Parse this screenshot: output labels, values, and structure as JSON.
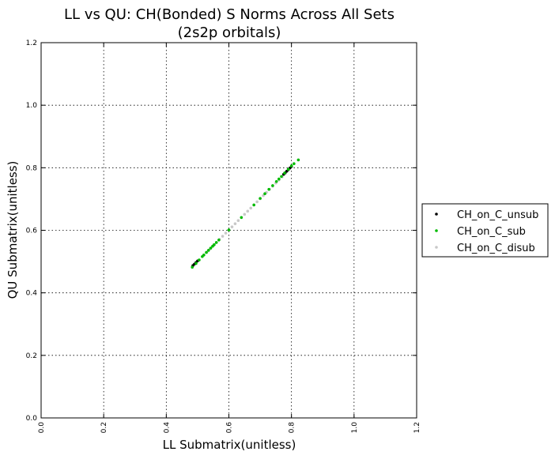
{
  "chart_data": {
    "type": "scatter",
    "title_line1": "LL vs QU: CH(Bonded) S Norms Across All Sets",
    "title_line2": "(2s2p orbitals)",
    "xlabel": "LL Submatrix(unitless)",
    "ylabel": "QU Submatrix(unitless)",
    "xlim": [
      0.0,
      1.2
    ],
    "ylim": [
      0.0,
      1.2
    ],
    "xticks": [
      "0.0",
      "0.2",
      "0.4",
      "0.6",
      "0.8",
      "1.0",
      "1.2"
    ],
    "yticks": [
      "0.0",
      "0.2",
      "0.4",
      "0.6",
      "0.8",
      "1.0",
      "1.2"
    ],
    "grid": true,
    "legend_position": "outside-right",
    "series": [
      {
        "name": "CH_on_C_unsub",
        "color": "#000000",
        "points": [
          [
            0.485,
            0.487
          ],
          [
            0.49,
            0.492
          ],
          [
            0.495,
            0.497
          ],
          [
            0.5,
            0.502
          ],
          [
            0.775,
            0.779
          ],
          [
            0.78,
            0.784
          ],
          [
            0.785,
            0.789
          ],
          [
            0.79,
            0.794
          ],
          [
            0.795,
            0.799
          ],
          [
            0.8,
            0.804
          ]
        ]
      },
      {
        "name": "CH_on_C_sub",
        "color": "#00bb00",
        "points": [
          [
            0.483,
            0.482
          ],
          [
            0.495,
            0.494
          ],
          [
            0.505,
            0.505
          ],
          [
            0.515,
            0.516
          ],
          [
            0.52,
            0.521
          ],
          [
            0.528,
            0.529
          ],
          [
            0.535,
            0.536
          ],
          [
            0.542,
            0.543
          ],
          [
            0.548,
            0.549
          ],
          [
            0.553,
            0.554
          ],
          [
            0.56,
            0.561
          ],
          [
            0.568,
            0.569
          ],
          [
            0.6,
            0.601
          ],
          [
            0.64,
            0.641
          ],
          [
            0.68,
            0.681
          ],
          [
            0.7,
            0.702
          ],
          [
            0.715,
            0.717
          ],
          [
            0.728,
            0.731
          ],
          [
            0.74,
            0.743
          ],
          [
            0.752,
            0.756
          ],
          [
            0.76,
            0.764
          ],
          [
            0.768,
            0.772
          ],
          [
            0.778,
            0.783
          ],
          [
            0.79,
            0.795
          ],
          [
            0.8,
            0.806
          ],
          [
            0.808,
            0.813
          ],
          [
            0.822,
            0.825
          ]
        ]
      },
      {
        "name": "CH_on_C_disub",
        "color": "#c8c8c8",
        "points": [
          [
            0.52,
            0.521
          ],
          [
            0.53,
            0.531
          ],
          [
            0.54,
            0.541
          ],
          [
            0.55,
            0.551
          ],
          [
            0.56,
            0.561
          ],
          [
            0.57,
            0.571
          ],
          [
            0.58,
            0.581
          ],
          [
            0.59,
            0.591
          ],
          [
            0.6,
            0.601
          ],
          [
            0.61,
            0.611
          ],
          [
            0.62,
            0.621
          ],
          [
            0.63,
            0.631
          ],
          [
            0.64,
            0.641
          ],
          [
            0.65,
            0.651
          ],
          [
            0.66,
            0.661
          ],
          [
            0.67,
            0.671
          ],
          [
            0.68,
            0.681
          ],
          [
            0.69,
            0.691
          ],
          [
            0.7,
            0.701
          ],
          [
            0.71,
            0.711
          ],
          [
            0.72,
            0.721
          ],
          [
            0.73,
            0.731
          ],
          [
            0.74,
            0.741
          ],
          [
            0.75,
            0.751
          ],
          [
            0.76,
            0.761
          ],
          [
            0.77,
            0.771
          ],
          [
            0.78,
            0.781
          ]
        ]
      }
    ]
  }
}
